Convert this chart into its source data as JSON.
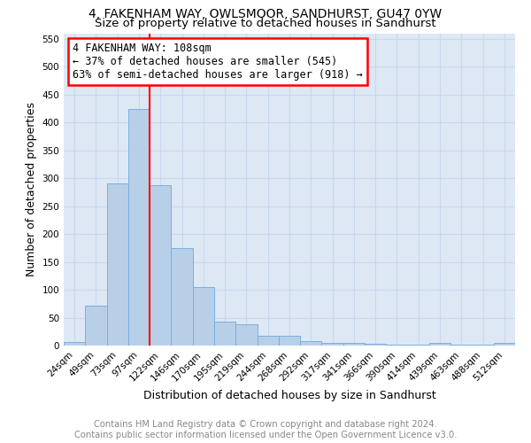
{
  "title": "4, FAKENHAM WAY, OWLSMOOR, SANDHURST, GU47 0YW",
  "subtitle": "Size of property relative to detached houses in Sandhurst",
  "xlabel": "Distribution of detached houses by size in Sandhurst",
  "ylabel": "Number of detached properties",
  "footer_line1": "Contains HM Land Registry data © Crown copyright and database right 2024.",
  "footer_line2": "Contains public sector information licensed under the Open Government Licence v3.0.",
  "bin_labels": [
    "24sqm",
    "49sqm",
    "73sqm",
    "97sqm",
    "122sqm",
    "146sqm",
    "170sqm",
    "195sqm",
    "219sqm",
    "244sqm",
    "268sqm",
    "292sqm",
    "317sqm",
    "341sqm",
    "366sqm",
    "390sqm",
    "414sqm",
    "439sqm",
    "463sqm",
    "488sqm",
    "512sqm"
  ],
  "bar_values": [
    7,
    72,
    290,
    424,
    288,
    175,
    105,
    43,
    38,
    18,
    18,
    8,
    4,
    4,
    3,
    1,
    1,
    4,
    1,
    1,
    4
  ],
  "bar_color": "#b8cfe8",
  "bar_edge_color": "#7aafe0",
  "vline_color": "red",
  "annotation_text": "4 FAKENHAM WAY: 108sqm\n← 37% of detached houses are smaller (545)\n63% of semi-detached houses are larger (918) →",
  "annotation_box_color": "white",
  "annotation_box_edge": "red",
  "ylim": [
    0,
    560
  ],
  "yticks": [
    0,
    50,
    100,
    150,
    200,
    250,
    300,
    350,
    400,
    450,
    500,
    550
  ],
  "grid_color": "#c8d8ee",
  "background_color": "#dde8f4",
  "title_fontsize": 10,
  "subtitle_fontsize": 9.5,
  "axis_label_fontsize": 9,
  "xlabel_fontsize": 9,
  "tick_fontsize": 7.5,
  "footer_fontsize": 7.2,
  "vline_bar_index": 4
}
